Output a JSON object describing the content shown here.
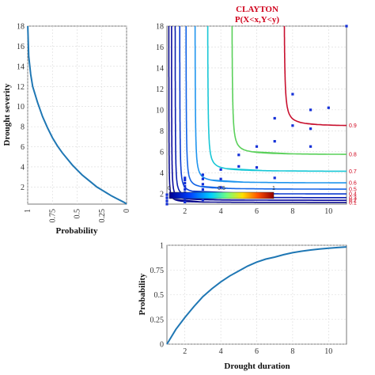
{
  "chart_data": [
    {
      "type": "line",
      "id": "marginal-severity",
      "xlabel": "Probability",
      "ylabel": "Drought severity",
      "x_reversed": true,
      "xlim": [
        1,
        0
      ],
      "ylim": [
        0.3,
        18
      ],
      "xticks": [
        1,
        0.75,
        0.5,
        0.25,
        0
      ],
      "xtick_labels": [
        "1",
        "0.75",
        "0.5",
        "0.25",
        "0"
      ],
      "yticks": [
        2,
        4,
        6,
        8,
        10,
        12,
        14,
        16,
        18
      ],
      "grid": true,
      "series": [
        {
          "x": [
            0.999,
            0.99,
            0.97,
            0.95,
            0.9,
            0.85,
            0.8,
            0.75,
            0.7,
            0.65,
            0.6,
            0.55,
            0.5,
            0.45,
            0.4,
            0.35,
            0.3,
            0.25,
            0.2,
            0.15,
            0.1,
            0.05,
            0.02,
            0.0
          ],
          "y": [
            18.0,
            15.0,
            13.2,
            12.0,
            10.4,
            9.0,
            7.9,
            6.9,
            6.1,
            5.4,
            4.8,
            4.2,
            3.7,
            3.2,
            2.8,
            2.4,
            2.0,
            1.7,
            1.4,
            1.1,
            0.85,
            0.6,
            0.45,
            0.3
          ]
        }
      ]
    },
    {
      "type": "line",
      "id": "copula-contour",
      "title": "CLAYTON",
      "subtitle": "P(X<x,Y<y)",
      "xlim": [
        1,
        11
      ],
      "ylim": [
        1,
        18
      ],
      "xticks": [
        2,
        4,
        6,
        8,
        10
      ],
      "yticks": [
        2,
        4,
        6,
        8,
        10,
        12,
        14,
        16,
        18
      ],
      "grid": true,
      "contour_levels": [
        0.1,
        0.2,
        0.3,
        0.4,
        0.5,
        0.6,
        0.7,
        0.8,
        0.9
      ],
      "contour_level_labels": [
        "0.1",
        "0.2",
        "0.3",
        "0.4",
        "0.5",
        "0.6",
        "0.7",
        "0.8",
        "0.9"
      ],
      "colorbar_ticks": [
        "0",
        "0.5",
        "1"
      ],
      "contours": [
        {
          "level": 0.1,
          "x_asym": 1.1,
          "y_asym": 1.15,
          "color": "#0a0a8c"
        },
        {
          "level": 0.2,
          "x_asym": 1.25,
          "y_asym": 1.35,
          "color": "#0a0a9e"
        },
        {
          "level": 0.3,
          "x_asym": 1.45,
          "y_asym": 1.6,
          "color": "#0b1fb0"
        },
        {
          "level": 0.4,
          "x_asym": 1.7,
          "y_asym": 1.95,
          "color": "#0d3bd0"
        },
        {
          "level": 0.5,
          "x_asym": 2.05,
          "y_asym": 2.4,
          "color": "#1565e6"
        },
        {
          "level": 0.6,
          "x_asym": 2.55,
          "y_asym": 3.0,
          "color": "#1f95ee"
        },
        {
          "level": 0.7,
          "x_asym": 3.25,
          "y_asym": 4.1,
          "color": "#18c7d6"
        },
        {
          "level": 0.8,
          "x_asym": 4.6,
          "y_asym": 5.7,
          "color": "#5ad05a"
        },
        {
          "level": 0.9,
          "x_asym": 7.5,
          "y_asym": 8.4,
          "color": "#c8102e"
        }
      ],
      "points": [
        {
          "x": 1.0,
          "y": 1.0
        },
        {
          "x": 1.0,
          "y": 1.3
        },
        {
          "x": 1.0,
          "y": 1.6
        },
        {
          "x": 1.0,
          "y": 1.9
        },
        {
          "x": 2.0,
          "y": 1.2
        },
        {
          "x": 2.0,
          "y": 1.5
        },
        {
          "x": 2.0,
          "y": 1.8
        },
        {
          "x": 2.0,
          "y": 2.1
        },
        {
          "x": 2.0,
          "y": 2.4
        },
        {
          "x": 2.0,
          "y": 2.7
        },
        {
          "x": 2.0,
          "y": 3.0
        },
        {
          "x": 2.0,
          "y": 3.3
        },
        {
          "x": 2.0,
          "y": 3.5
        },
        {
          "x": 3.0,
          "y": 1.4
        },
        {
          "x": 3.0,
          "y": 1.9
        },
        {
          "x": 3.0,
          "y": 2.4
        },
        {
          "x": 3.0,
          "y": 2.9
        },
        {
          "x": 3.0,
          "y": 3.4
        },
        {
          "x": 3.0,
          "y": 3.8
        },
        {
          "x": 4.0,
          "y": 1.8
        },
        {
          "x": 4.0,
          "y": 2.6
        },
        {
          "x": 4.0,
          "y": 3.4
        },
        {
          "x": 4.0,
          "y": 4.3
        },
        {
          "x": 5.0,
          "y": 4.6
        },
        {
          "x": 5.0,
          "y": 5.7
        },
        {
          "x": 6.0,
          "y": 4.5
        },
        {
          "x": 6.0,
          "y": 6.5
        },
        {
          "x": 7.0,
          "y": 3.5
        },
        {
          "x": 7.0,
          "y": 7.0
        },
        {
          "x": 7.0,
          "y": 9.2
        },
        {
          "x": 8.0,
          "y": 8.5
        },
        {
          "x": 8.0,
          "y": 11.5
        },
        {
          "x": 9.0,
          "y": 6.5
        },
        {
          "x": 9.0,
          "y": 8.2
        },
        {
          "x": 9.0,
          "y": 10.0
        },
        {
          "x": 10.0,
          "y": 10.2
        },
        {
          "x": 11.0,
          "y": 18.0
        }
      ]
    },
    {
      "type": "line",
      "id": "marginal-duration",
      "xlabel": "Drought duration",
      "ylabel": "Probability",
      "xlim": [
        1,
        11
      ],
      "ylim": [
        0,
        1
      ],
      "xticks": [
        2,
        4,
        6,
        8,
        10
      ],
      "yticks": [
        0,
        0.25,
        0.5,
        0.75,
        1
      ],
      "ytick_labels": [
        "0",
        "0.25",
        "0.5",
        "0.75",
        "1"
      ],
      "grid": true,
      "series": [
        {
          "x": [
            1,
            1.5,
            2,
            2.5,
            3,
            3.5,
            4,
            4.5,
            5,
            5.5,
            6,
            6.5,
            7,
            7.5,
            8,
            8.5,
            9,
            9.5,
            10,
            10.5,
            11
          ],
          "y": [
            0.0,
            0.15,
            0.27,
            0.38,
            0.48,
            0.56,
            0.63,
            0.69,
            0.74,
            0.79,
            0.83,
            0.86,
            0.88,
            0.905,
            0.925,
            0.94,
            0.952,
            0.962,
            0.97,
            0.977,
            0.983
          ]
        }
      ]
    }
  ]
}
